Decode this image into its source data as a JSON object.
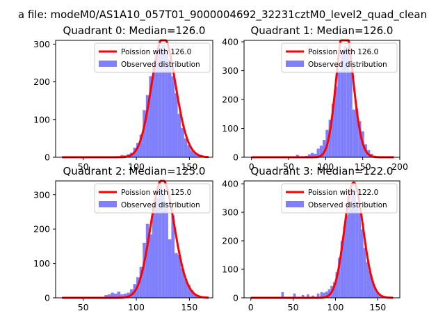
{
  "suptitle": "a file: modeM0/AS1A10_057T01_9000004692_32231cztM0_level2_quad_clean",
  "colors": {
    "bars": "#8080ff",
    "poisson": "#ff0000",
    "frame": "#000000",
    "legend_border": "#cccccc"
  },
  "chart_data": [
    {
      "type": "bar",
      "title": "Quadrant 0: Median=126.0",
      "median": 126.0,
      "xlim": [
        24,
        172
      ],
      "ylim": [
        0,
        310
      ],
      "xticks": [
        50,
        100,
        150
      ],
      "yticks": [
        0,
        100,
        200,
        300
      ],
      "legend": [
        "Poission with 126.0",
        "Observed distribution"
      ],
      "legend_loc": "upper right",
      "bin_width": 3,
      "bins": [
        76,
        79,
        82,
        85,
        88,
        91,
        94,
        97,
        100,
        103,
        106,
        109,
        112,
        115,
        118,
        121,
        124,
        127,
        130,
        133,
        136,
        139,
        142,
        145,
        148,
        151,
        154,
        157,
        160,
        163
      ],
      "counts": [
        2,
        3,
        3,
        6,
        5,
        8,
        12,
        25,
        38,
        60,
        125,
        165,
        215,
        240,
        270,
        290,
        298,
        280,
        260,
        215,
        170,
        115,
        78,
        50,
        32,
        18,
        10,
        5,
        2,
        1
      ],
      "poisson_mean": 126.0,
      "poisson_x": [
        30,
        168
      ]
    },
    {
      "type": "bar",
      "title": "Quadrant 1: Median=126.0",
      "median": 126.0,
      "xlim": [
        -10,
        200
      ],
      "ylim": [
        0,
        405
      ],
      "xticks": [
        0,
        50,
        100,
        150,
        200
      ],
      "yticks": [
        0,
        100,
        200,
        300,
        400
      ],
      "legend": [
        "Poission with 126.0",
        "Observed distribution"
      ],
      "legend_loc": "upper right",
      "bin_width": 4,
      "bins": [
        30,
        50,
        60,
        72,
        76,
        80,
        84,
        88,
        92,
        96,
        100,
        104,
        108,
        112,
        116,
        120,
        124,
        128,
        132,
        136,
        140,
        144,
        148,
        152,
        156,
        160,
        164
      ],
      "counts": [
        2,
        3,
        8,
        5,
        10,
        15,
        12,
        30,
        40,
        60,
        95,
        130,
        185,
        245,
        300,
        360,
        385,
        380,
        300,
        165,
        170,
        125,
        90,
        45,
        25,
        12,
        6
      ],
      "poisson_mean": 126.0,
      "poisson_x": [
        0,
        192
      ]
    },
    {
      "type": "bar",
      "title": "Quadrant 2: Median=125.0",
      "median": 125.0,
      "xlim": [
        24,
        172
      ],
      "ylim": [
        0,
        340
      ],
      "xticks": [
        50,
        100,
        150
      ],
      "yticks": [
        0,
        100,
        200,
        300
      ],
      "legend": [
        "Poission with 125.0",
        "Observed distribution"
      ],
      "legend_loc": "upper right",
      "bin_width": 3,
      "bins": [
        62,
        70,
        73,
        76,
        79,
        82,
        85,
        88,
        91,
        94,
        97,
        100,
        103,
        106,
        109,
        112,
        115,
        118,
        121,
        124,
        127,
        130,
        133,
        136,
        139,
        142,
        145,
        148,
        151,
        154,
        157
      ],
      "counts": [
        3,
        8,
        10,
        15,
        12,
        18,
        10,
        12,
        15,
        25,
        40,
        60,
        90,
        160,
        215,
        185,
        270,
        290,
        330,
        300,
        280,
        170,
        240,
        130,
        125,
        85,
        55,
        38,
        22,
        10,
        5
      ],
      "poisson_mean": 125.0,
      "poisson_x": [
        30,
        168
      ]
    },
    {
      "type": "bar",
      "title": "Quadrant 3: Median=122.0",
      "median": 122.0,
      "xlim": [
        -8,
        176
      ],
      "ylim": [
        0,
        410
      ],
      "xticks": [
        0,
        50,
        100,
        150
      ],
      "yticks": [
        0,
        100,
        200,
        300,
        400
      ],
      "legend": [
        "Poission with 122.0",
        "Observed distribution"
      ],
      "legend_loc": "upper right",
      "bin_width": 3,
      "bins": [
        20,
        36,
        50,
        60,
        66,
        72,
        78,
        82,
        85,
        88,
        91,
        94,
        97,
        100,
        103,
        106,
        109,
        112,
        115,
        118,
        121,
        124,
        127,
        130,
        133,
        136,
        139,
        142,
        145,
        148,
        151,
        154
      ],
      "counts": [
        2,
        20,
        15,
        10,
        12,
        8,
        15,
        20,
        18,
        22,
        30,
        42,
        55,
        90,
        140,
        200,
        250,
        290,
        340,
        370,
        380,
        335,
        300,
        240,
        175,
        125,
        95,
        60,
        38,
        20,
        10,
        5
      ],
      "poisson_mean": 122.0,
      "poisson_x": [
        0,
        168
      ]
    }
  ]
}
